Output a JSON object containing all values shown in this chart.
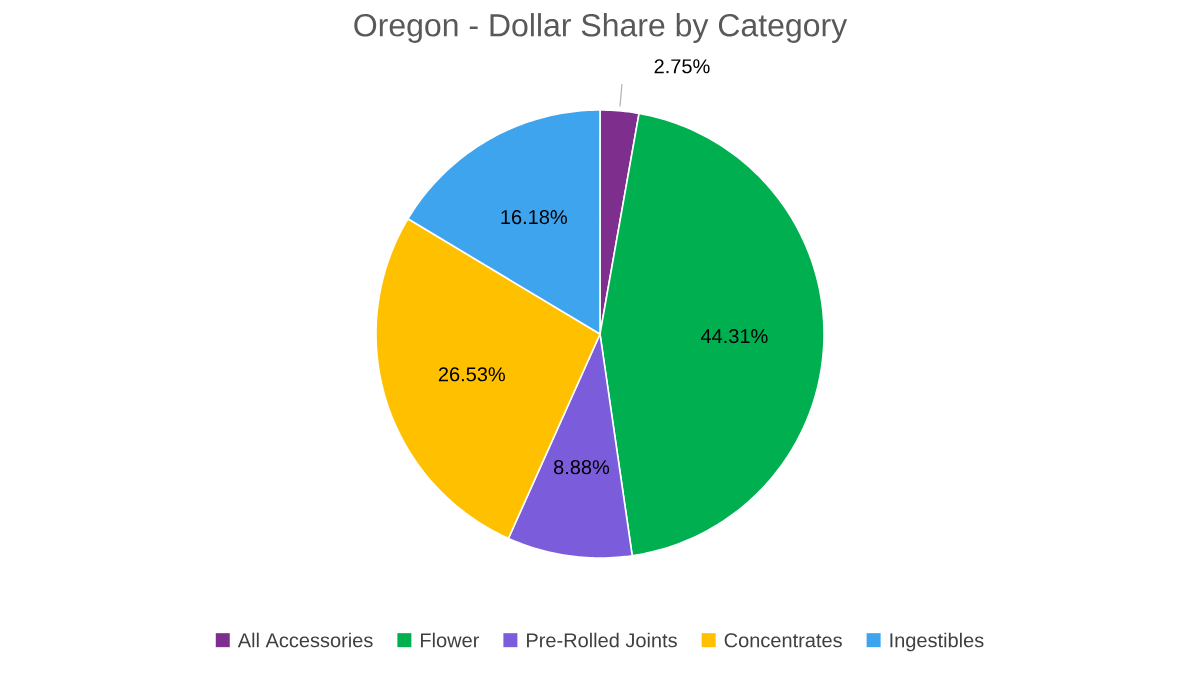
{
  "chart_data": {
    "type": "pie",
    "title": "Oregon - Dollar Share by Category",
    "categories": [
      "All Accessories",
      "Flower",
      "Pre-Rolled Joints",
      "Concentrates",
      "Ingestibles"
    ],
    "values": [
      2.75,
      44.31,
      8.88,
      26.53,
      16.18
    ],
    "value_labels": [
      "2.75%",
      "44.31%",
      "8.88%",
      "26.53%",
      "16.18%"
    ],
    "colors": [
      "#7e2f8e",
      "#00b050",
      "#7b5ddc",
      "#ffc000",
      "#3fa4ee"
    ],
    "legend": "bottom"
  }
}
